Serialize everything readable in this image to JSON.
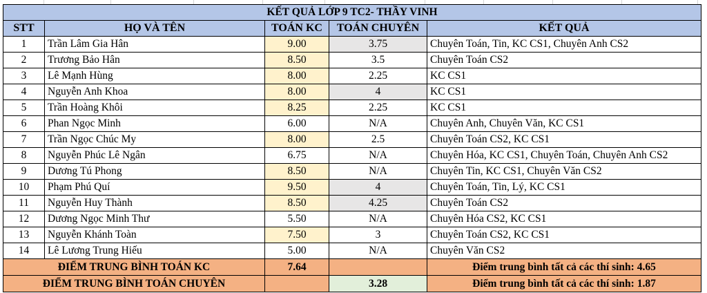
{
  "title": "KẾT QUẢ LỚP 9 TC2- THẦY VINH",
  "headers": [
    "STT",
    "HỌ VÀ TÊN",
    "TOÁN KC",
    "TOÁN CHUYÊN",
    "KẾT QUẢ"
  ],
  "rows": [
    {
      "stt": "1",
      "name": "Trần Lâm Gia Hân",
      "kc": "9.00",
      "chuyen": "3.75",
      "result": "Chuyên Toán, Tin, KC CS1, Chuyên Anh CS2",
      "kc_yellow": true,
      "chuyen_gray": true
    },
    {
      "stt": "2",
      "name": "Trương Bảo Hân",
      "kc": "8.50",
      "chuyen": "3.5",
      "result": "Chuyên Toán CS2",
      "kc_yellow": true,
      "chuyen_gray": false
    },
    {
      "stt": "3",
      "name": "Lê Mạnh Hùng",
      "kc": "8.00",
      "chuyen": "2.25",
      "result": "KC CS1",
      "kc_yellow": true,
      "chuyen_gray": false
    },
    {
      "stt": "4",
      "name": "Nguyễn Anh Khoa",
      "kc": "8.00",
      "chuyen": "4",
      "result": "KC CS1",
      "kc_yellow": true,
      "chuyen_gray": true
    },
    {
      "stt": "5",
      "name": "Trần Hoàng Khôi",
      "kc": "8.25",
      "chuyen": "2.25",
      "result": "KC CS1",
      "kc_yellow": true,
      "chuyen_gray": false
    },
    {
      "stt": "6",
      "name": "Phan Ngọc Minh",
      "kc": "6.00",
      "chuyen": "N/A",
      "result": "Chuyên Anh, Chuyên Văn, KC CS1",
      "kc_yellow": false,
      "chuyen_gray": false
    },
    {
      "stt": "7",
      "name": "Trần Ngọc Chúc My",
      "kc": "8.00",
      "chuyen": "2.5",
      "result": "Chuyên Toán CS2, KC CS1",
      "kc_yellow": true,
      "chuyen_gray": false
    },
    {
      "stt": "8",
      "name": "Nguyễn Phúc Lê Ngân",
      "kc": "6.75",
      "chuyen": "N/A",
      "result": "Chuyên Hóa, KC CS1, Chuyên Toán, Chuyên Anh CS2",
      "kc_yellow": false,
      "chuyen_gray": false
    },
    {
      "stt": "9",
      "name": "Dương Tú Phong",
      "kc": "8.50",
      "chuyen": "N/A",
      "result": "Chuyên Tin, KC CS1, Chuyên Văn CS2",
      "kc_yellow": true,
      "chuyen_gray": false
    },
    {
      "stt": "10",
      "name": "Phạm Phú Quí",
      "kc": "9.50",
      "chuyen": "4",
      "result": "Chuyên Toán, Tin, Lý, KC CS1",
      "kc_yellow": true,
      "chuyen_gray": true
    },
    {
      "stt": "11",
      "name": "Nguyễn Huy Thành",
      "kc": "8.50",
      "chuyen": "4.25",
      "result": "Chuyên Toán CS2",
      "kc_yellow": true,
      "chuyen_gray": true
    },
    {
      "stt": "12",
      "name": "Dương Ngọc Minh Thư",
      "kc": "5.50",
      "chuyen": "N/A",
      "result": "Chuyên Hóa CS2, KC CS1",
      "kc_yellow": false,
      "chuyen_gray": false
    },
    {
      "stt": "13",
      "name": "Nguyễn Khánh Toàn",
      "kc": "7.50",
      "chuyen": "3",
      "result": "Chuyên Toán CS2, KC CS1",
      "kc_yellow": true,
      "chuyen_gray": false
    },
    {
      "stt": "14",
      "name": "Lê Lương Trung Hiếu",
      "kc": "5.00",
      "chuyen": "N/A",
      "result": "Chuyên Văn CS2",
      "kc_yellow": false,
      "chuyen_gray": false
    }
  ],
  "footer": {
    "avg_kc_label": "ĐIỂM TRUNG BÌNH TOÁN KC",
    "avg_kc_value": "7.64",
    "avg_all_kc": "Điểm trung bình tất cả các thí sinh: 4.65",
    "avg_chuyen_label": "ĐIỂM TRUNG BÌNH TOÁN CHUYÊN",
    "avg_chuyen_value": "3.28",
    "avg_all_chuyen": "Điểm trung bình tất cả các thí sinh: 1.87"
  },
  "colors": {
    "header_bg": "#b4c6e7",
    "highlight_yellow": "#fff2cc",
    "highlight_gray": "#e7e6e6",
    "footer_orange": "#f4b183",
    "footer_green": "#e2efda"
  }
}
